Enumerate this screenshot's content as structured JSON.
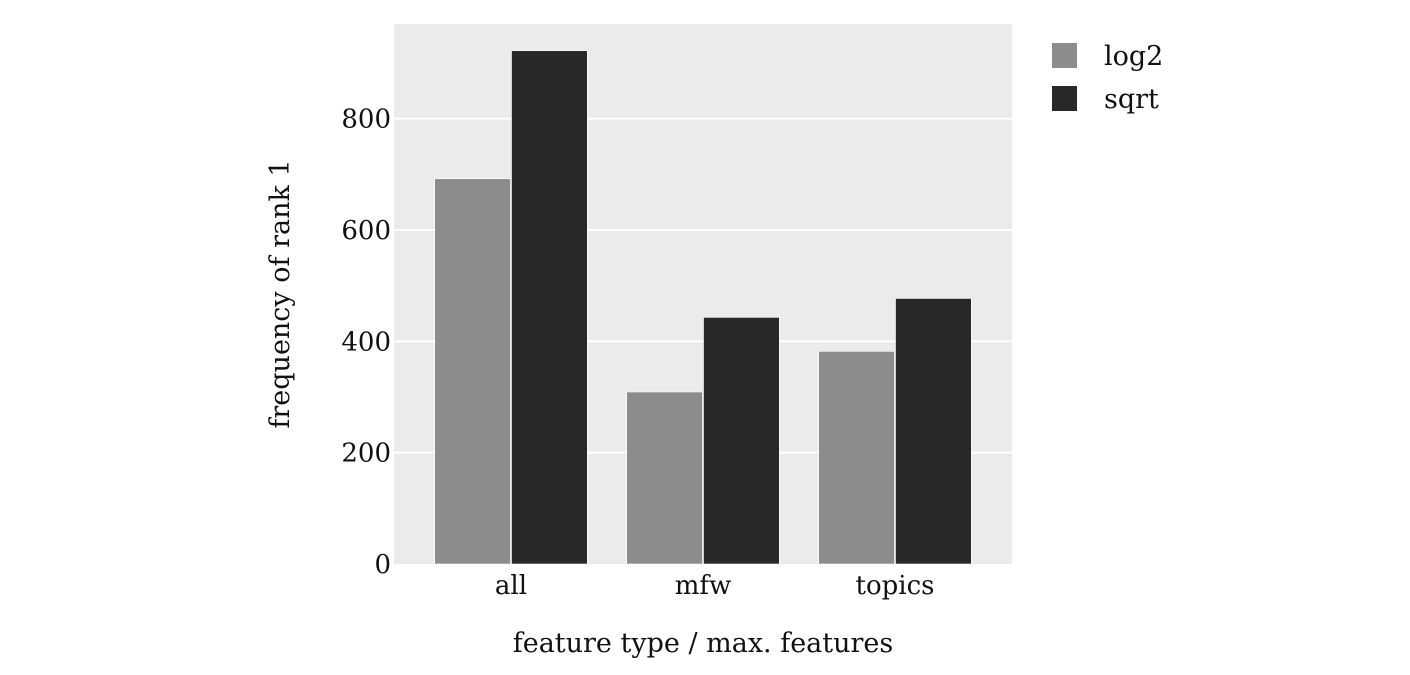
{
  "chart_data": {
    "type": "bar",
    "title": "",
    "xlabel": "feature type / max. features",
    "ylabel": "frequency of rank 1",
    "categories": [
      "all",
      "mfw",
      "topics"
    ],
    "series": [
      {
        "name": "log2",
        "color": "#8c8c8c",
        "values": [
          692,
          309,
          382
        ]
      },
      {
        "name": "sqrt",
        "color": "#282828",
        "values": [
          922,
          443,
          477
        ]
      }
    ],
    "ylim": [
      0,
      970
    ],
    "yticks": [
      0,
      200,
      400,
      600,
      800
    ],
    "grid": true,
    "grid_axis": "y",
    "panel_background": "#ebebeb",
    "legend_position": "top-right outside plot"
  }
}
